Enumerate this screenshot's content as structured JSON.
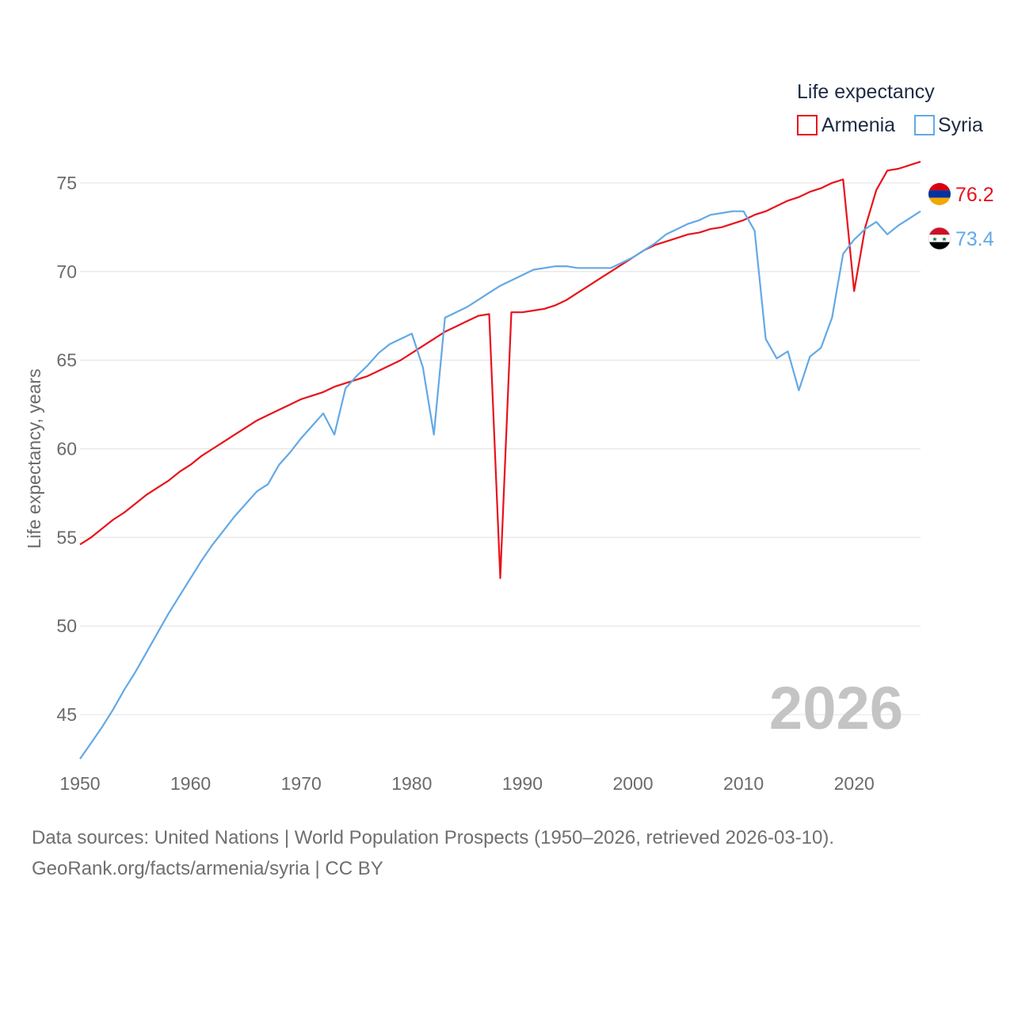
{
  "chart_data": {
    "type": "line",
    "title": "",
    "xlabel": "",
    "ylabel": "Life expectancy, years",
    "xlim": [
      1950,
      2026
    ],
    "ylim": [
      42.5,
      77.5
    ],
    "xticks": [
      1950,
      1960,
      1970,
      1980,
      1990,
      2000,
      2010,
      2020
    ],
    "yticks": [
      45,
      50,
      55,
      60,
      65,
      70,
      75
    ],
    "grid": true,
    "legend": {
      "title": "Life expectancy",
      "position": "top-right"
    },
    "year_label": "2026",
    "x": [
      1950,
      1951,
      1952,
      1953,
      1954,
      1955,
      1956,
      1957,
      1958,
      1959,
      1960,
      1961,
      1962,
      1963,
      1964,
      1965,
      1966,
      1967,
      1968,
      1969,
      1970,
      1971,
      1972,
      1973,
      1974,
      1975,
      1976,
      1977,
      1978,
      1979,
      1980,
      1981,
      1982,
      1983,
      1984,
      1985,
      1986,
      1987,
      1988,
      1989,
      1990,
      1991,
      1992,
      1993,
      1994,
      1995,
      1996,
      1997,
      1998,
      1999,
      2000,
      2001,
      2002,
      2003,
      2004,
      2005,
      2006,
      2007,
      2008,
      2009,
      2010,
      2011,
      2012,
      2013,
      2014,
      2015,
      2016,
      2017,
      2018,
      2019,
      2020,
      2021,
      2022,
      2023,
      2024,
      2025,
      2026
    ],
    "series": [
      {
        "name": "Armenia",
        "color": "#e8121c",
        "end_label": "76.2",
        "flag_icon": "armenia-flag-icon",
        "values": [
          54.6,
          55.0,
          55.5,
          56.0,
          56.4,
          56.9,
          57.4,
          57.8,
          58.2,
          58.7,
          59.1,
          59.6,
          60.0,
          60.4,
          60.8,
          61.2,
          61.6,
          61.9,
          62.2,
          62.5,
          62.8,
          63.0,
          63.2,
          63.5,
          63.7,
          63.9,
          64.1,
          64.4,
          64.7,
          65.0,
          65.4,
          65.8,
          66.2,
          66.6,
          66.9,
          67.2,
          67.5,
          67.6,
          52.7,
          67.7,
          67.7,
          67.8,
          67.9,
          68.1,
          68.4,
          68.8,
          69.2,
          69.6,
          70.0,
          70.4,
          70.8,
          71.2,
          71.5,
          71.7,
          71.9,
          72.1,
          72.2,
          72.4,
          72.5,
          72.7,
          72.9,
          73.2,
          73.4,
          73.7,
          74.0,
          74.2,
          74.5,
          74.7,
          75.0,
          75.2,
          68.9,
          72.5,
          74.6,
          75.7,
          75.8,
          76.0,
          76.2
        ]
      },
      {
        "name": "Syria",
        "color": "#62a9e6",
        "end_label": "73.4",
        "flag_icon": "syria-flag-icon",
        "values": [
          42.5,
          43.4,
          44.3,
          45.3,
          46.4,
          47.4,
          48.5,
          49.6,
          50.7,
          51.7,
          52.7,
          53.7,
          54.6,
          55.4,
          56.2,
          56.9,
          57.6,
          58.0,
          59.1,
          59.8,
          60.6,
          61.3,
          62.0,
          60.8,
          63.4,
          64.1,
          64.7,
          65.4,
          65.9,
          66.2,
          66.5,
          64.6,
          60.8,
          67.4,
          67.7,
          68.0,
          68.4,
          68.8,
          69.2,
          69.5,
          69.8,
          70.1,
          70.2,
          70.3,
          70.3,
          70.2,
          70.2,
          70.2,
          70.2,
          70.5,
          70.8,
          71.2,
          71.6,
          72.1,
          72.4,
          72.7,
          72.9,
          73.2,
          73.3,
          73.4,
          73.4,
          72.3,
          66.2,
          65.1,
          65.5,
          63.3,
          65.2,
          65.7,
          67.4,
          71.0,
          71.8,
          72.4,
          72.8,
          72.1,
          72.6,
          73.0,
          73.4
        ]
      }
    ]
  },
  "footer": {
    "sources": "Data sources: United Nations | World Population Prospects (1950–2026, retrieved 2026-03-10).",
    "attribution": "GeoRank.org/facts/armenia/syria | CC BY"
  }
}
